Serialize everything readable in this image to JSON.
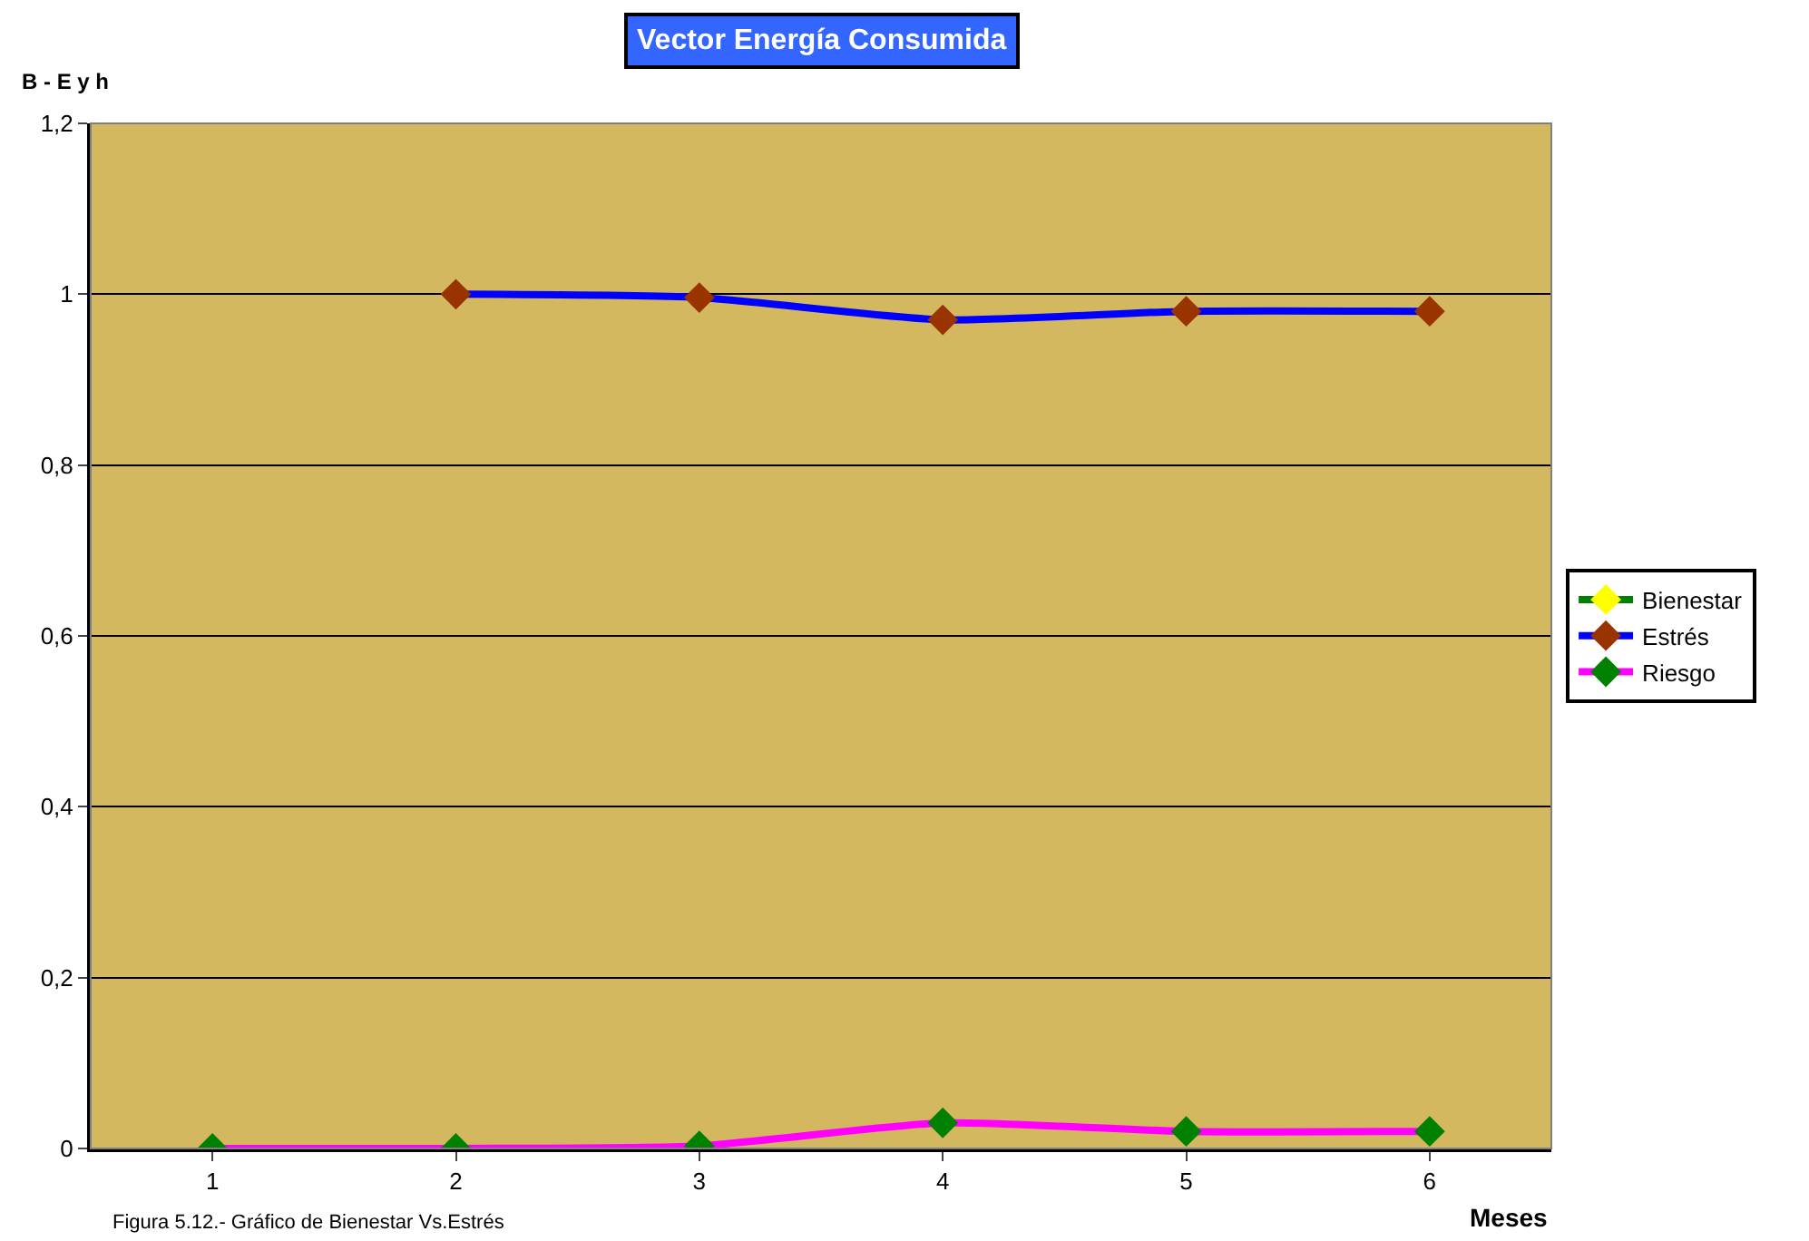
{
  "chart_data": {
    "type": "line",
    "title": "Vector Energía Consumida",
    "ylabel": "B - E y h",
    "xlabel": "Meses",
    "categories": [
      "1",
      "2",
      "3",
      "4",
      "5",
      "6"
    ],
    "series": [
      {
        "name": "Bienestar",
        "color": "#008000",
        "colors": [
          "#ffff00",
          "#ffff00",
          "#ffff00",
          "#ffff00",
          "#ffff00",
          "#ffff00"
        ],
        "values": [
          null,
          null,
          null,
          null,
          null,
          null
        ]
      },
      {
        "name": "Estrés",
        "color": "#0000ff",
        "colors": [
          "#993300",
          "#993300",
          "#993300",
          "#993300",
          "#993300",
          "#993300"
        ],
        "values": [
          null,
          1,
          0.996,
          0.97,
          0.98,
          0.98
        ]
      },
      {
        "name": "Riesgo",
        "color": "#ff00ff",
        "colors": [
          "#008000",
          "#008000",
          "#008000",
          "#008000",
          "#008000",
          "#008000"
        ],
        "values": [
          0,
          0,
          0.003,
          0.03,
          0.02,
          0.02
        ]
      }
    ],
    "ylim": [
      0,
      1.2
    ],
    "yticks": [
      0,
      {
        "value": 0.2,
        "label": "0,2"
      },
      {
        "value": 0.4,
        "label": "0,4"
      },
      {
        "value": 0.6,
        "label": "0,6"
      },
      {
        "value": 0.8,
        "label": "0,8"
      },
      1,
      {
        "value": 1.2,
        "label": "1,2"
      }
    ],
    "grid": "y",
    "legend": "right",
    "marker": "diamond",
    "line_style": "solid",
    "annotations": [
      "Figura 5.12.- Gráfico de Bienestar Vs.Estrés"
    ]
  }
}
